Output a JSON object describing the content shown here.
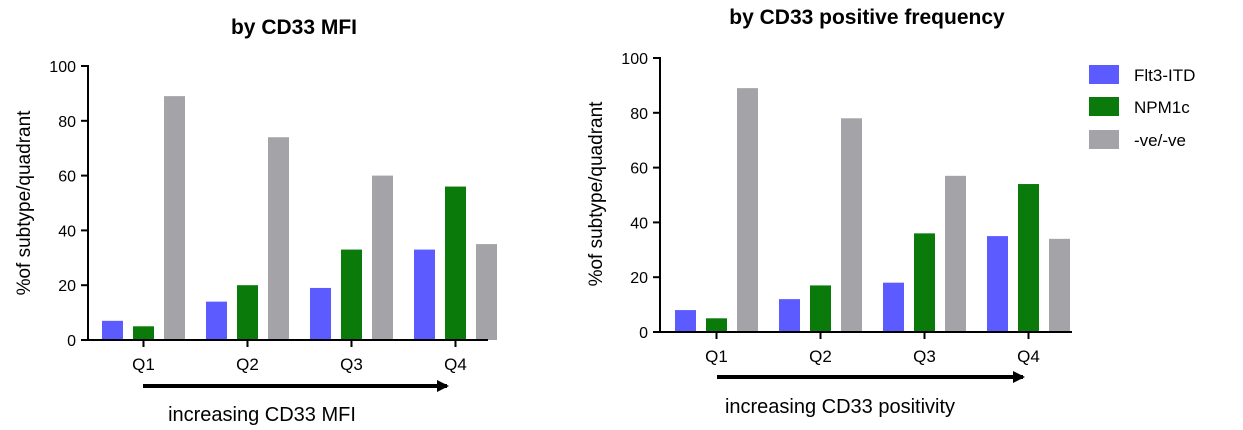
{
  "chart_data": [
    {
      "type": "bar",
      "title": "by CD33 MFI",
      "ylabel": "%of subtype/quadrant",
      "xlabel": "",
      "ylim": [
        0,
        100
      ],
      "yticks": [
        "0",
        "20",
        "40",
        "60",
        "80",
        "100"
      ],
      "categories": [
        "Q1",
        "Q2",
        "Q3",
        "Q4"
      ],
      "series": [
        {
          "name": "Flt3-ITD",
          "color": "#5b5bff",
          "values": [
            7,
            14,
            19,
            33
          ]
        },
        {
          "name": "NPM1c",
          "color": "#0a7a0a",
          "values": [
            5,
            20,
            33,
            56
          ]
        },
        {
          "name": "-ve/-ve",
          "color": "#a4a4a8",
          "values": [
            89,
            74,
            60,
            35
          ]
        }
      ],
      "annotation": "increasing CD33 MFI",
      "grid": false
    },
    {
      "type": "bar",
      "title": "by CD33 positive frequency",
      "ylabel": "%of subtype/quadrant",
      "xlabel": "",
      "ylim": [
        0,
        100
      ],
      "yticks": [
        "0",
        "20",
        "40",
        "60",
        "80",
        "100"
      ],
      "categories": [
        "Q1",
        "Q2",
        "Q3",
        "Q4"
      ],
      "series": [
        {
          "name": "Flt3-ITD",
          "color": "#5b5bff",
          "values": [
            8,
            12,
            18,
            35
          ]
        },
        {
          "name": "NPM1c",
          "color": "#0a7a0a",
          "values": [
            5,
            17,
            36,
            54
          ]
        },
        {
          "name": "-ve/-ve",
          "color": "#a4a4a8",
          "values": [
            89,
            78,
            57,
            34
          ]
        }
      ],
      "annotation": "increasing CD33 positivity",
      "grid": false
    }
  ],
  "legend": {
    "placement": "top-right",
    "entries": [
      {
        "name": "Flt3-ITD",
        "color": "#5b5bff"
      },
      {
        "name": "NPM1c",
        "color": "#0a7a0a"
      },
      {
        "name": "-ve/-ve",
        "color": "#a4a4a8"
      }
    ]
  }
}
